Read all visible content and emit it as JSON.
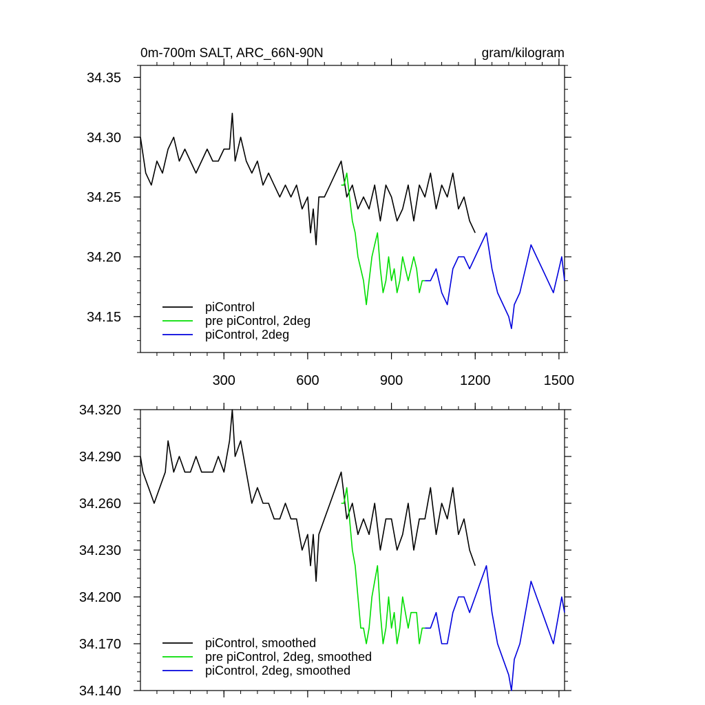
{
  "chart_data": [
    {
      "type": "line",
      "title": "0m-700m SALT, ARC_66N-90N",
      "units": "gram/kilogram",
      "xlim": [
        1,
        1520
      ],
      "ylim": [
        34.12,
        34.36
      ],
      "xticks": [
        300,
        600,
        900,
        1200,
        1500
      ],
      "xtick_labels": [
        "300",
        "600",
        "900",
        "1200",
        "1500"
      ],
      "yticks": [
        34.15,
        34.2,
        34.25,
        34.3,
        34.35
      ],
      "ytick_labels": [
        "34.15",
        "34.20",
        "34.25",
        "34.30",
        "34.35"
      ],
      "legend_position": "bottom-left",
      "series": [
        {
          "name": "piControl",
          "color": "#000000",
          "x": [
            1,
            20,
            40,
            60,
            80,
            100,
            120,
            140,
            160,
            180,
            200,
            220,
            240,
            260,
            280,
            300,
            320,
            330,
            340,
            360,
            380,
            400,
            420,
            440,
            460,
            480,
            500,
            520,
            540,
            560,
            580,
            600,
            610,
            620,
            630,
            640,
            660,
            680,
            700,
            720,
            740,
            760,
            780,
            800,
            820,
            840,
            860,
            880,
            900,
            920,
            940,
            960,
            980,
            1000,
            1020,
            1040,
            1060,
            1080,
            1100,
            1120,
            1140,
            1160,
            1180,
            1200
          ],
          "y": [
            34.3,
            34.27,
            34.26,
            34.28,
            34.27,
            34.29,
            34.3,
            34.28,
            34.29,
            34.28,
            34.27,
            34.28,
            34.29,
            34.28,
            34.28,
            34.29,
            34.29,
            34.32,
            34.28,
            34.3,
            34.28,
            34.27,
            34.28,
            34.26,
            34.27,
            34.26,
            34.25,
            34.26,
            34.25,
            34.26,
            34.24,
            34.25,
            34.22,
            34.24,
            34.21,
            34.25,
            34.25,
            34.26,
            34.27,
            34.28,
            34.25,
            34.26,
            34.24,
            34.25,
            34.24,
            34.26,
            34.23,
            34.26,
            34.25,
            34.23,
            34.24,
            34.26,
            34.23,
            34.26,
            34.25,
            34.27,
            34.24,
            34.26,
            34.25,
            34.27,
            34.24,
            34.25,
            34.23,
            34.22
          ]
        },
        {
          "name": "pre piControl, 2deg",
          "color": "#00dd00",
          "x": [
            720,
            730,
            740,
            750,
            760,
            770,
            780,
            790,
            800,
            810,
            820,
            830,
            840,
            850,
            860,
            870,
            880,
            890,
            900,
            910,
            920,
            930,
            940,
            950,
            960,
            970,
            980,
            990,
            1000,
            1010,
            1020
          ],
          "y": [
            34.26,
            34.26,
            34.27,
            34.25,
            34.23,
            34.22,
            34.2,
            34.19,
            34.18,
            34.16,
            34.18,
            34.2,
            34.21,
            34.22,
            34.19,
            34.17,
            34.18,
            34.2,
            34.18,
            34.19,
            34.17,
            34.18,
            34.2,
            34.19,
            34.18,
            34.19,
            34.2,
            34.19,
            34.17,
            34.18,
            34.18
          ]
        },
        {
          "name": "piControl, 2deg",
          "color": "#0000dd",
          "x": [
            1020,
            1040,
            1060,
            1080,
            1100,
            1120,
            1140,
            1160,
            1180,
            1200,
            1220,
            1240,
            1260,
            1280,
            1300,
            1320,
            1330,
            1340,
            1360,
            1380,
            1400,
            1420,
            1440,
            1460,
            1480,
            1500,
            1510,
            1520
          ],
          "y": [
            34.18,
            34.18,
            34.19,
            34.17,
            34.16,
            34.19,
            34.2,
            34.2,
            34.19,
            34.2,
            34.21,
            34.22,
            34.19,
            34.17,
            34.16,
            34.15,
            34.14,
            34.16,
            34.17,
            34.19,
            34.21,
            34.2,
            34.19,
            34.18,
            34.17,
            34.19,
            34.2,
            34.18
          ]
        }
      ]
    },
    {
      "type": "line",
      "title": "",
      "xlim": [
        1,
        1520
      ],
      "ylim": [
        34.14,
        34.32
      ],
      "xticks": [
        300,
        600,
        900,
        1200,
        1500
      ],
      "yticks": [
        34.14,
        34.17,
        34.2,
        34.23,
        34.26,
        34.29,
        34.32
      ],
      "ytick_labels": [
        "34.140",
        "34.170",
        "34.200",
        "34.230",
        "34.260",
        "34.290",
        "34.320"
      ],
      "legend_position": "bottom-left",
      "series": [
        {
          "name": "piControl, smoothed",
          "color": "#000000",
          "x": [
            1,
            10,
            30,
            50,
            70,
            90,
            100,
            110,
            120,
            140,
            160,
            180,
            200,
            220,
            240,
            260,
            280,
            300,
            320,
            330,
            340,
            360,
            380,
            400,
            420,
            440,
            460,
            480,
            500,
            520,
            540,
            560,
            580,
            600,
            610,
            620,
            630,
            640,
            660,
            680,
            700,
            720,
            740,
            760,
            780,
            800,
            820,
            840,
            860,
            880,
            900,
            920,
            940,
            960,
            980,
            1000,
            1020,
            1040,
            1060,
            1080,
            1100,
            1120,
            1140,
            1160,
            1180,
            1200
          ],
          "y": [
            34.29,
            34.28,
            34.27,
            34.26,
            34.27,
            34.28,
            34.3,
            34.29,
            34.28,
            34.29,
            34.28,
            34.28,
            34.29,
            34.28,
            34.28,
            34.28,
            34.29,
            34.28,
            34.3,
            34.32,
            34.29,
            34.3,
            34.28,
            34.26,
            34.27,
            34.26,
            34.26,
            34.25,
            34.25,
            34.26,
            34.25,
            34.25,
            34.23,
            34.24,
            34.22,
            34.24,
            34.21,
            34.24,
            34.25,
            34.26,
            34.27,
            34.28,
            34.25,
            34.26,
            34.24,
            34.25,
            34.24,
            34.26,
            34.23,
            34.25,
            34.25,
            34.23,
            34.24,
            34.26,
            34.23,
            34.25,
            34.25,
            34.27,
            34.24,
            34.26,
            34.25,
            34.27,
            34.24,
            34.25,
            34.23,
            34.22
          ]
        },
        {
          "name": "pre piControl, 2deg, smoothed",
          "color": "#00dd00",
          "x": [
            720,
            730,
            740,
            750,
            760,
            770,
            780,
            790,
            800,
            810,
            820,
            830,
            840,
            850,
            860,
            870,
            880,
            890,
            900,
            910,
            920,
            930,
            940,
            950,
            960,
            970,
            980,
            990,
            1000,
            1010,
            1020
          ],
          "y": [
            34.26,
            34.26,
            34.27,
            34.25,
            34.23,
            34.22,
            34.2,
            34.18,
            34.18,
            34.17,
            34.18,
            34.2,
            34.21,
            34.22,
            34.19,
            34.17,
            34.18,
            34.2,
            34.18,
            34.19,
            34.17,
            34.18,
            34.2,
            34.19,
            34.18,
            34.19,
            34.19,
            34.19,
            34.17,
            34.18,
            34.18
          ]
        },
        {
          "name": "piControl, 2deg, smoothed",
          "color": "#0000dd",
          "x": [
            1020,
            1040,
            1060,
            1080,
            1100,
            1120,
            1140,
            1160,
            1180,
            1200,
            1220,
            1240,
            1260,
            1280,
            1300,
            1320,
            1330,
            1340,
            1360,
            1380,
            1400,
            1420,
            1440,
            1460,
            1480,
            1500,
            1510,
            1520
          ],
          "y": [
            34.18,
            34.18,
            34.19,
            34.17,
            34.17,
            34.19,
            34.2,
            34.2,
            34.19,
            34.2,
            34.21,
            34.22,
            34.19,
            34.17,
            34.16,
            34.15,
            34.14,
            34.16,
            34.17,
            34.19,
            34.21,
            34.2,
            34.19,
            34.18,
            34.17,
            34.19,
            34.2,
            34.19
          ]
        }
      ]
    }
  ]
}
